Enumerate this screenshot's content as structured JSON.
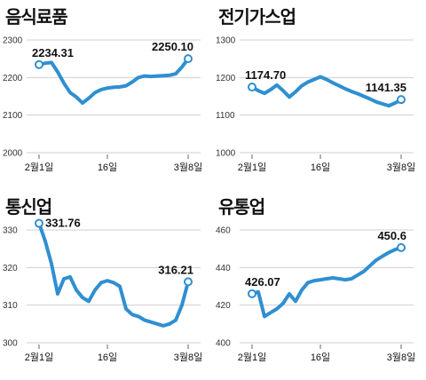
{
  "chart_data": [
    {
      "type": "line",
      "title": "음식료품",
      "x": [
        "2월1일",
        "2/2",
        "2/3",
        "2/4",
        "2/5",
        "2/8",
        "2/9",
        "2/10",
        "2/11",
        "2/12",
        "2/15",
        "2/16",
        "2/17",
        "2/18",
        "2/19",
        "2/22",
        "2/23",
        "2/24",
        "2/25",
        "2/26",
        "3/2",
        "3/3",
        "3/4",
        "3/5",
        "3/8"
      ],
      "y": [
        2234.31,
        2238,
        2240,
        2215,
        2185,
        2160,
        2148,
        2132,
        2145,
        2160,
        2168,
        2172,
        2174,
        2175,
        2178,
        2188,
        2200,
        2204,
        2203,
        2204,
        2205,
        2206,
        2210,
        2228,
        2250.1
      ],
      "ylim": [
        2000,
        2300
      ],
      "yticks": [
        2000,
        2100,
        2200,
        2300
      ],
      "xtick_labels": [
        {
          "i": 0,
          "label": "2월1일"
        },
        {
          "i": 11,
          "label": "16일"
        },
        {
          "i": 24,
          "label": "3월8일"
        }
      ],
      "labels": [
        {
          "i": 0,
          "text": "2234.31",
          "pos": "above"
        },
        {
          "i": 24,
          "text": "2250.10",
          "pos": "above"
        }
      ],
      "color": "#2f8fd1"
    },
    {
      "type": "line",
      "title": "전기가스업",
      "x": [
        "2월1일",
        "2/2",
        "2/3",
        "2/4",
        "2/5",
        "2/8",
        "2/9",
        "2/10",
        "2/11",
        "2/12",
        "2/15",
        "2/16",
        "2/17",
        "2/18",
        "2/19",
        "2/22",
        "2/23",
        "2/24",
        "2/25",
        "2/26",
        "3/2",
        "3/3",
        "3/4",
        "3/5",
        "3/8"
      ],
      "y": [
        1174.7,
        1165,
        1158,
        1168,
        1180,
        1165,
        1148,
        1162,
        1178,
        1188,
        1195,
        1202,
        1195,
        1186,
        1178,
        1170,
        1163,
        1157,
        1150,
        1143,
        1135,
        1130,
        1125,
        1132,
        1141.35
      ],
      "ylim": [
        1000,
        1300
      ],
      "yticks": [
        1000,
        1100,
        1200,
        1300
      ],
      "xtick_labels": [
        {
          "i": 0,
          "label": "2월1일"
        },
        {
          "i": 11,
          "label": "16일"
        },
        {
          "i": 24,
          "label": "3월8일"
        }
      ],
      "labels": [
        {
          "i": 0,
          "text": "1174.70",
          "pos": "above"
        },
        {
          "i": 24,
          "text": "1141.35",
          "pos": "above"
        }
      ],
      "color": "#2f8fd1"
    },
    {
      "type": "line",
      "title": "통신업",
      "x": [
        "2월1일",
        "2/2",
        "2/3",
        "2/4",
        "2/5",
        "2/8",
        "2/9",
        "2/10",
        "2/11",
        "2/12",
        "2/15",
        "2/16",
        "2/17",
        "2/18",
        "2/19",
        "2/22",
        "2/23",
        "2/24",
        "2/25",
        "2/26",
        "3/2",
        "3/3",
        "3/4",
        "3/5",
        "3/8"
      ],
      "y": [
        331.76,
        327,
        321,
        313,
        317,
        317.5,
        314,
        312,
        311,
        314,
        316,
        316.5,
        316,
        315,
        309,
        307.5,
        307,
        306,
        305.5,
        305,
        304.5,
        305,
        306,
        310,
        316.21
      ],
      "ylim": [
        300,
        330
      ],
      "yticks": [
        300,
        310,
        320,
        330
      ],
      "xtick_labels": [
        {
          "i": 0,
          "label": "2월1일"
        },
        {
          "i": 11,
          "label": "16일"
        },
        {
          "i": 24,
          "label": "3월8일"
        }
      ],
      "labels": [
        {
          "i": 0,
          "text": "331.76",
          "pos": "right"
        },
        {
          "i": 24,
          "text": "316.21",
          "pos": "above"
        }
      ],
      "color": "#2f8fd1"
    },
    {
      "type": "line",
      "title": "유통업",
      "x": [
        "2월1일",
        "2/2",
        "2/3",
        "2/4",
        "2/5",
        "2/8",
        "2/9",
        "2/10",
        "2/11",
        "2/12",
        "2/15",
        "2/16",
        "2/17",
        "2/18",
        "2/19",
        "2/22",
        "2/23",
        "2/24",
        "2/25",
        "2/26",
        "3/2",
        "3/3",
        "3/4",
        "3/5",
        "3/8"
      ],
      "y": [
        426.07,
        427,
        414,
        416,
        418,
        421,
        426,
        422,
        428,
        432,
        433,
        433.5,
        434,
        434.5,
        434,
        433.5,
        434,
        436,
        438,
        441,
        444,
        446,
        448,
        449.5,
        450.6
      ],
      "ylim": [
        400,
        460
      ],
      "yticks": [
        400,
        420,
        440,
        460
      ],
      "xtick_labels": [
        {
          "i": 0,
          "label": "2월1일"
        },
        {
          "i": 11,
          "label": "16일"
        },
        {
          "i": 24,
          "label": "3월8일"
        }
      ],
      "labels": [
        {
          "i": 0,
          "text": "426.07",
          "pos": "above"
        },
        {
          "i": 24,
          "text": "450.6",
          "pos": "above"
        }
      ],
      "color": "#2f8fd1"
    }
  ]
}
